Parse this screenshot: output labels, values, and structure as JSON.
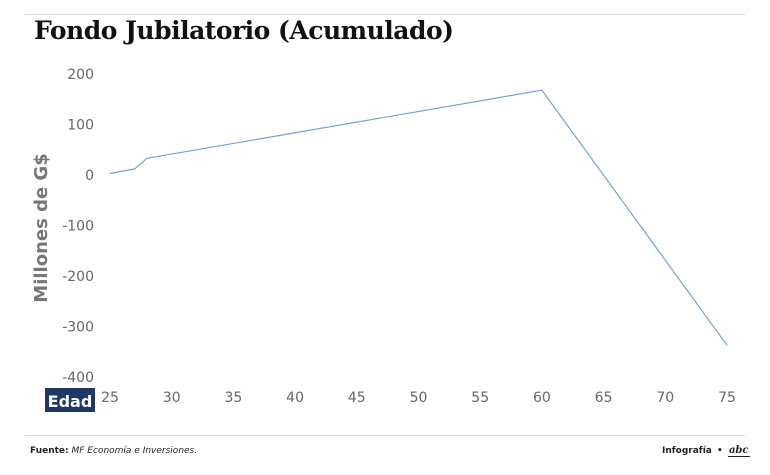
{
  "header": {
    "title": "Fondo Jubilatorio (Acumulado)"
  },
  "footer": {
    "source_label": "Fuente:",
    "source_text": "MF Economía e Inversiones.",
    "credit_label": "Infografía",
    "credit_separator": "•",
    "brand": "abc"
  },
  "colors": {
    "line": "#7a9fd6",
    "axis_text": "#666666",
    "xlabel_bg": "#1f3766",
    "xlabel_text": "#ffffff"
  },
  "chart_data": {
    "type": "line",
    "title": "Fondo Jubilatorio (Acumulado)",
    "xlabel": "Edad",
    "ylabel": "Millones de G$",
    "xlim": [
      25,
      75
    ],
    "ylim": [
      -400,
      200
    ],
    "xticks": [
      25,
      30,
      35,
      40,
      45,
      50,
      55,
      60,
      65,
      70,
      75
    ],
    "yticks": [
      200,
      100,
      0,
      -100,
      -200,
      -300,
      -400
    ],
    "grid": false,
    "legend": "none",
    "series": [
      {
        "x": [
          25,
          27,
          28,
          60,
          75
        ],
        "values": [
          3,
          12,
          33,
          168,
          -337
        ]
      }
    ]
  }
}
